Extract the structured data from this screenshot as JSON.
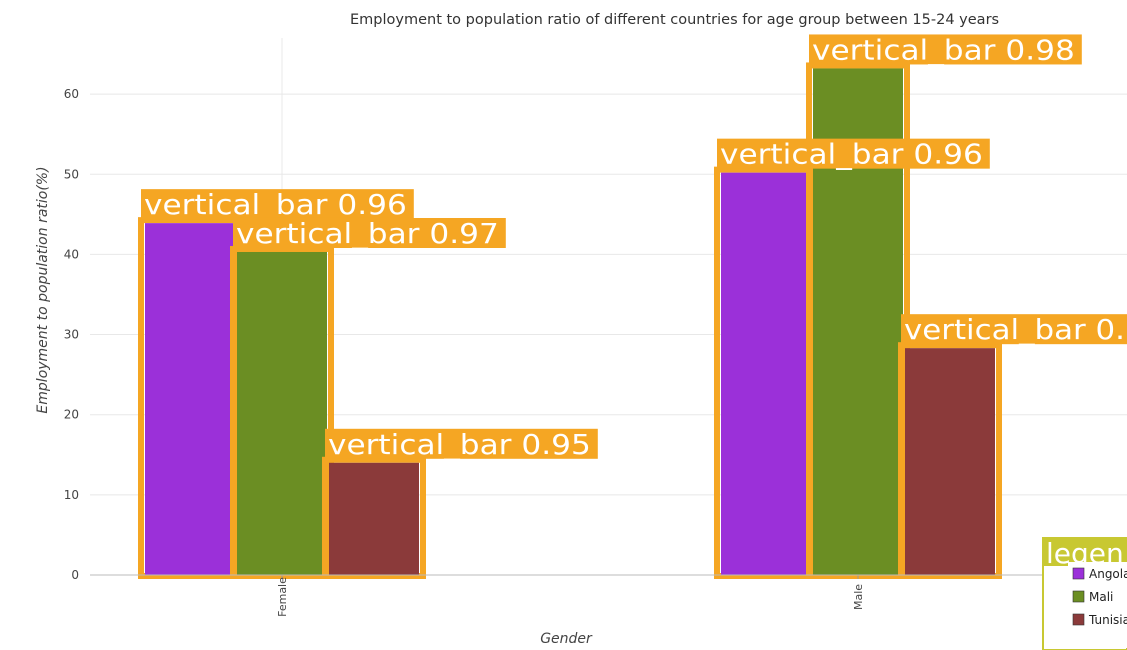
{
  "chart_data": {
    "type": "bar",
    "title": "Employment to population ratio of different countries for age group between 15-24 years",
    "xlabel": "Gender",
    "ylabel": "Employment to population ratio(%)",
    "categories": [
      "Female",
      "Male"
    ],
    "ylim": [
      0,
      67
    ],
    "yticks": [
      0,
      10,
      20,
      30,
      40,
      50,
      60
    ],
    "series": [
      {
        "name": "Angola",
        "color": "#9b30d9",
        "values": [
          43.9,
          50.2
        ]
      },
      {
        "name": "Mali",
        "color": "#6b8e23",
        "values": [
          40.3,
          63.2
        ]
      },
      {
        "name": "Tunisia",
        "color": "#8b3a3a",
        "values": [
          14.0,
          28.3
        ]
      }
    ],
    "annotations": [
      {
        "text": "vertical_bar  0.96",
        "series": 0,
        "category": 0
      },
      {
        "text": "vertical_bar  0.97",
        "series": 1,
        "category": 0
      },
      {
        "text": "vertical_bar  0.95",
        "series": 2,
        "category": 0
      },
      {
        "text": "vertical_bar  0.96",
        "series": 0,
        "category": 1
      },
      {
        "text": "vertical_bar  0.98",
        "series": 1,
        "category": 1
      },
      {
        "text": "vertical_bar  0.",
        "series": 2,
        "category": 1
      }
    ],
    "legend": {
      "title": "legen",
      "position": "bottom-right"
    },
    "annotation_color": "#f5a623",
    "legend_border_color": "#c8c832"
  }
}
